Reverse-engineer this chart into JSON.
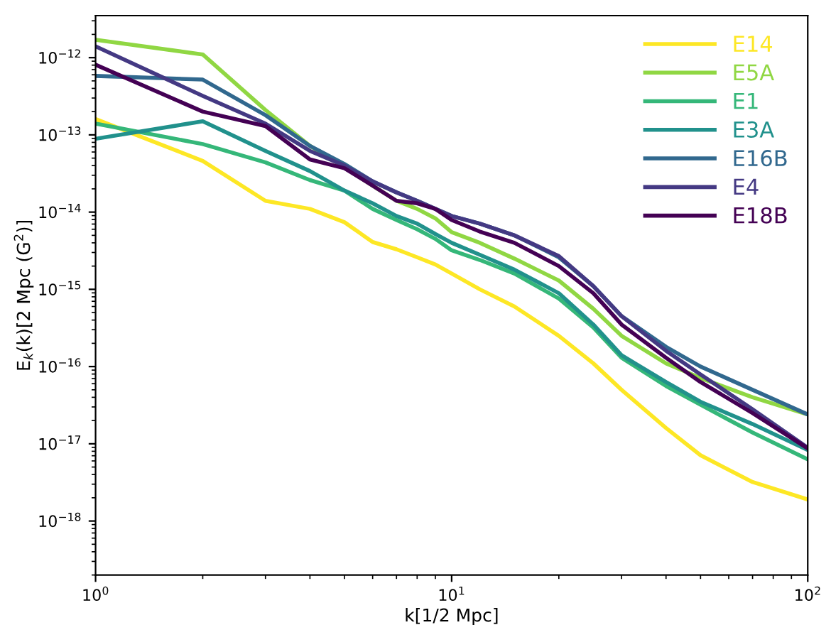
{
  "chart_data": {
    "type": "line",
    "xlabel": "k[1/2 Mpc]",
    "ylabel": "E$_{k}$(k)[2 Mpc (G$^{2}$)]",
    "log": "xy",
    "xlim": [
      1,
      100
    ],
    "ylim": [
      2e-19,
      3.5e-12
    ],
    "xticks": [
      {
        "value": 1,
        "label": "10$^{0}$"
      },
      {
        "value": 10,
        "label": "10$^{1}$"
      },
      {
        "value": 100,
        "label": "10$^{2}$"
      }
    ],
    "yticks": [
      {
        "value": 1e-18,
        "label": "10$^{−18}$"
      },
      {
        "value": 1e-17,
        "label": "10$^{−17}$"
      },
      {
        "value": 1e-16,
        "label": "10$^{−16}$"
      },
      {
        "value": 1e-15,
        "label": "10$^{−15}$"
      },
      {
        "value": 1e-14,
        "label": "10$^{−14}$"
      },
      {
        "value": 1e-13,
        "label": "10$^{−13}$"
      },
      {
        "value": 1e-12,
        "label": "10$^{−12}$"
      }
    ],
    "x": [
      1,
      2,
      3,
      4,
      5,
      6,
      7,
      8,
      9,
      10,
      12,
      15,
      20,
      25,
      30,
      40,
      50,
      70,
      100
    ],
    "grid": false,
    "legend": "top right",
    "marker": "none",
    "line_style": "solid",
    "series": [
      {
        "name": "E14",
        "color": "#fde725",
        "values": [
          1.6e-13,
          4.6e-14,
          1.4e-14,
          1.1e-14,
          7.4e-15,
          4.1e-15,
          3.3e-15,
          2.6e-15,
          2.1e-15,
          1.6e-15,
          1e-15,
          6e-16,
          2.5e-16,
          1.1e-16,
          5e-17,
          1.6e-17,
          7.1e-18,
          3.2e-18,
          1.9e-18
        ]
      },
      {
        "name": "E5A",
        "color": "#90d743",
        "values": [
          1.7e-12,
          1.1e-12,
          2.1e-13,
          7.2e-14,
          3.8e-14,
          2.2e-14,
          1.4e-14,
          1.1e-14,
          8.3e-15,
          5.5e-15,
          4e-15,
          2.5e-15,
          1.3e-15,
          5.6e-16,
          2.5e-16,
          1.1e-16,
          7.1e-17,
          4e-17,
          2.4e-17
        ]
      },
      {
        "name": "E1",
        "color": "#35b779",
        "values": [
          1.4e-13,
          7.6e-14,
          4.4e-14,
          2.6e-14,
          1.9e-14,
          1.1e-14,
          7.9e-15,
          6e-15,
          4.5e-15,
          3.2e-15,
          2.4e-15,
          1.6e-15,
          7.6e-16,
          3.2e-16,
          1.3e-16,
          5.6e-17,
          3.2e-17,
          1.4e-17,
          6.3e-18
        ]
      },
      {
        "name": "E3A",
        "color": "#21918c",
        "values": [
          8.9e-14,
          1.5e-13,
          6.2e-14,
          3.4e-14,
          1.9e-14,
          1.3e-14,
          8.9e-15,
          7.1e-15,
          5.2e-15,
          4e-15,
          2.8e-15,
          1.8e-15,
          8.9e-16,
          3.5e-16,
          1.4e-16,
          6.3e-17,
          3.5e-17,
          1.8e-17,
          8.3e-18
        ]
      },
      {
        "name": "E16B",
        "color": "#31688e",
        "values": [
          5.8e-13,
          5.2e-13,
          1.8e-13,
          7.2e-14,
          4.2e-14,
          2.5e-14,
          1.8e-14,
          1.4e-14,
          1.1e-14,
          8.9e-15,
          7.1e-15,
          5e-15,
          2.6e-15,
          1.1e-15,
          4.5e-16,
          1.8e-16,
          1e-16,
          5e-17,
          2.4e-17
        ]
      },
      {
        "name": "E4",
        "color": "#443983",
        "values": [
          1.4e-12,
          3.2e-13,
          1.4e-13,
          6.2e-14,
          4e-14,
          2.5e-14,
          1.8e-14,
          1.4e-14,
          1.1e-14,
          8.9e-15,
          7.1e-15,
          5e-15,
          2.7e-15,
          1.1e-15,
          4.5e-16,
          1.6e-16,
          7.9e-17,
          2.8e-17,
          8.9e-18
        ]
      },
      {
        "name": "E18B",
        "color": "#440154",
        "values": [
          8.1e-13,
          2e-13,
          1.3e-13,
          4.8e-14,
          3.7e-14,
          2.2e-14,
          1.4e-14,
          1.3e-14,
          1.1e-14,
          7.9e-15,
          5.6e-15,
          4e-15,
          2e-15,
          8.9e-16,
          3.5e-16,
          1.3e-16,
          6.3e-17,
          2.5e-17,
          8.7e-18
        ]
      }
    ]
  }
}
